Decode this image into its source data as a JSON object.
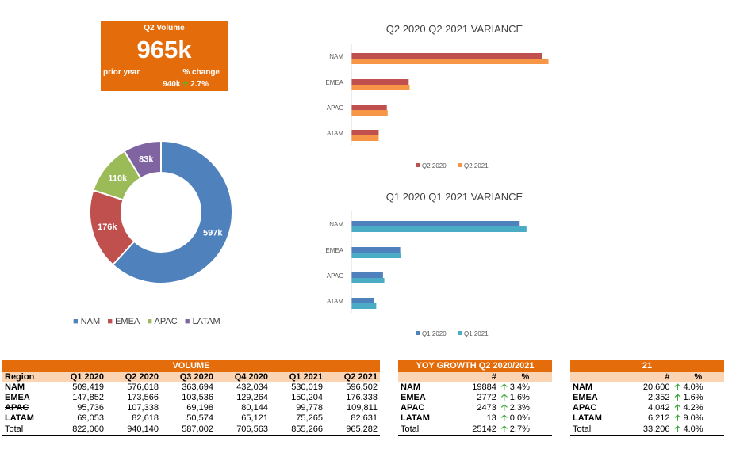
{
  "kpi": {
    "title": "Q2 Volume",
    "value": "965k",
    "prior_label": "prior year",
    "change_label": "% change",
    "prior_value": "940k",
    "change_value": "2.7%"
  },
  "colors": {
    "nam": "#4f81bd",
    "emea": "#c0504d",
    "apac": "#9bbb59",
    "latam": "#8064a2",
    "q2_2020": "#c0504d",
    "q2_2021": "#f79646",
    "q1_2020": "#4f81bd",
    "q1_2021": "#4bacc6",
    "accent": "#e46c0a"
  },
  "chart_data": [
    {
      "type": "pie",
      "categories": [
        "NAM",
        "EMEA",
        "APAC",
        "LATAM"
      ],
      "values": [
        597,
        176,
        110,
        83
      ],
      "labels": [
        "597k",
        "176k",
        "110k",
        "83k"
      ],
      "legend": "bottom"
    },
    {
      "type": "bar",
      "title": "Q2 2020 Q2 2021 VARIANCE",
      "categories": [
        "NAM",
        "EMEA",
        "APAC",
        "LATAM"
      ],
      "series": [
        {
          "name": "Q2 2020",
          "values": [
            576618,
            173566,
            107338,
            82618
          ]
        },
        {
          "name": "Q2 2021",
          "values": [
            596502,
            176338,
            109811,
            82631
          ]
        }
      ],
      "legend": "bottom"
    },
    {
      "type": "bar",
      "title": "Q1 2020 Q1 2021 VARIANCE",
      "categories": [
        "NAM",
        "EMEA",
        "APAC",
        "LATAM"
      ],
      "series": [
        {
          "name": "Q1 2020",
          "values": [
            509419,
            147852,
            95736,
            69053
          ]
        },
        {
          "name": "Q1 2021",
          "values": [
            530019,
            150204,
            99778,
            75265
          ]
        }
      ],
      "legend": "bottom"
    }
  ],
  "volume_table": {
    "title": "VOLUME",
    "headers": [
      "Region",
      "Q1 2020",
      "Q2 2020",
      "Q3 2020",
      "Q4 2020",
      "Q1 2021",
      "Q2 2021"
    ],
    "rows": [
      [
        "NAM",
        "509,419",
        "576,618",
        "363,694",
        "432,034",
        "530,019",
        "596,502"
      ],
      [
        "EMEA",
        "147,852",
        "173,566",
        "103,536",
        "129,264",
        "150,204",
        "176,338"
      ],
      [
        "APAC",
        "95,736",
        "107,338",
        "69,198",
        "80,144",
        "99,778",
        "109,811"
      ],
      [
        "LATAM",
        "69,053",
        "82,618",
        "50,574",
        "65,121",
        "75,265",
        "82,631"
      ]
    ],
    "total": [
      "Total",
      "822,060",
      "940,140",
      "587,002",
      "706,563",
      "855,266",
      "965,282"
    ]
  },
  "yoy_table": {
    "title": "YOY GROWTH Q2 2020/2021",
    "headers": [
      "",
      "#",
      "%"
    ],
    "rows": [
      [
        "NAM",
        "19884",
        "3.4%"
      ],
      [
        "EMEA",
        "2772",
        "1.6%"
      ],
      [
        "APAC",
        "2473",
        "2.3%"
      ],
      [
        "LATAM",
        "13",
        "0.0%"
      ]
    ],
    "total": [
      "Total",
      "25142",
      "2.7%"
    ]
  },
  "t21_table": {
    "title": "21",
    "headers": [
      "",
      "#",
      "%"
    ],
    "rows": [
      [
        "NAM",
        "20,600",
        "4.0%"
      ],
      [
        "EMEA",
        "2,352",
        "1.6%"
      ],
      [
        "APAC",
        "4,042",
        "4.2%"
      ],
      [
        "LATAM",
        "6,212",
        "9.0%"
      ]
    ],
    "total": [
      "Total",
      "33,206",
      "4.0%"
    ]
  }
}
